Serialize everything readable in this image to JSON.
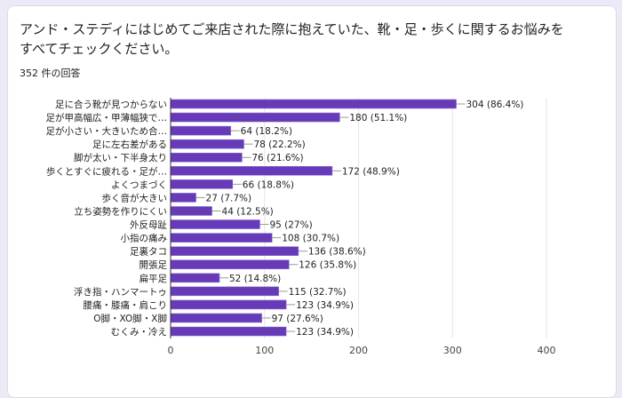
{
  "question": "アンド・ステディにはじめてご来店された際に抱えていた、靴・足・歩くに関するお悩みをすべてチェックください。",
  "response_count": "352 件の回答",
  "chart_data": {
    "type": "bar",
    "orientation": "horizontal",
    "categories": [
      "足に合う靴が見つからない",
      "足が甲高幅広・甲薄幅狭で…",
      "足が小さい・大きいため合…",
      "足に左右差がある",
      "脚が太い・下半身太り",
      "歩くとすぐに疲れる・足が…",
      "よくつまづく",
      "歩く音が大きい",
      "立ち姿勢を作りにくい",
      "外反母趾",
      "小指の痛み",
      "足裏タコ",
      "開張足",
      "扁平足",
      "浮き指・ハンマートゥ",
      "腰痛・膝痛・肩こり",
      "O脚・XO脚・X脚",
      "むくみ・冷え"
    ],
    "values": [
      304,
      180,
      64,
      78,
      76,
      172,
      66,
      27,
      44,
      95,
      108,
      136,
      126,
      52,
      115,
      123,
      97,
      123
    ],
    "data_labels": [
      "304 (86.4%)",
      "180 (51.1%)",
      "64 (18.2%)",
      "78 (22.2%)",
      "76 (21.6%)",
      "172 (48.9%)",
      "66 (18.8%)",
      "27 (7.7%)",
      "44 (12.5%)",
      "95 (27%)",
      "108 (30.7%)",
      "136 (38.6%)",
      "126 (35.8%)",
      "52 (14.8%)",
      "115 (32.7%)",
      "123 (34.9%)",
      "97 (27.6%)",
      "123 (34.9%)"
    ],
    "xlim": [
      0,
      400
    ],
    "xticks": [
      "0",
      "100",
      "200",
      "300",
      "400"
    ],
    "grid": true,
    "bar_color": "#673ab7"
  }
}
